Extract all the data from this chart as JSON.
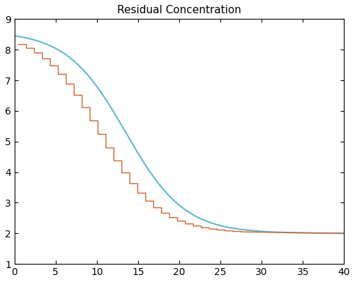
{
  "title": "Residual Concentration",
  "title_fontsize": 11,
  "title_fontweight": "normal",
  "xlim": [
    0,
    40
  ],
  "ylim": [
    1,
    9
  ],
  "xticks": [
    0,
    5,
    10,
    15,
    20,
    25,
    30,
    35,
    40
  ],
  "yticks": [
    1,
    2,
    3,
    4,
    5,
    6,
    7,
    8,
    9
  ],
  "smooth_color": "#5BB8D4",
  "step_color": "#D4622A",
  "smooth_linewidth": 1.5,
  "step_linewidth": 1.0,
  "y_start": 8.6,
  "y_end": 2.0,
  "smooth_inflection": 13.5,
  "smooth_steepness": 0.28,
  "step_n": 28,
  "step_x_start": 0.5,
  "step_x_end": 27.5,
  "flat_x_end": 40.0,
  "figsize": [
    5.09,
    4.04
  ],
  "dpi": 100
}
